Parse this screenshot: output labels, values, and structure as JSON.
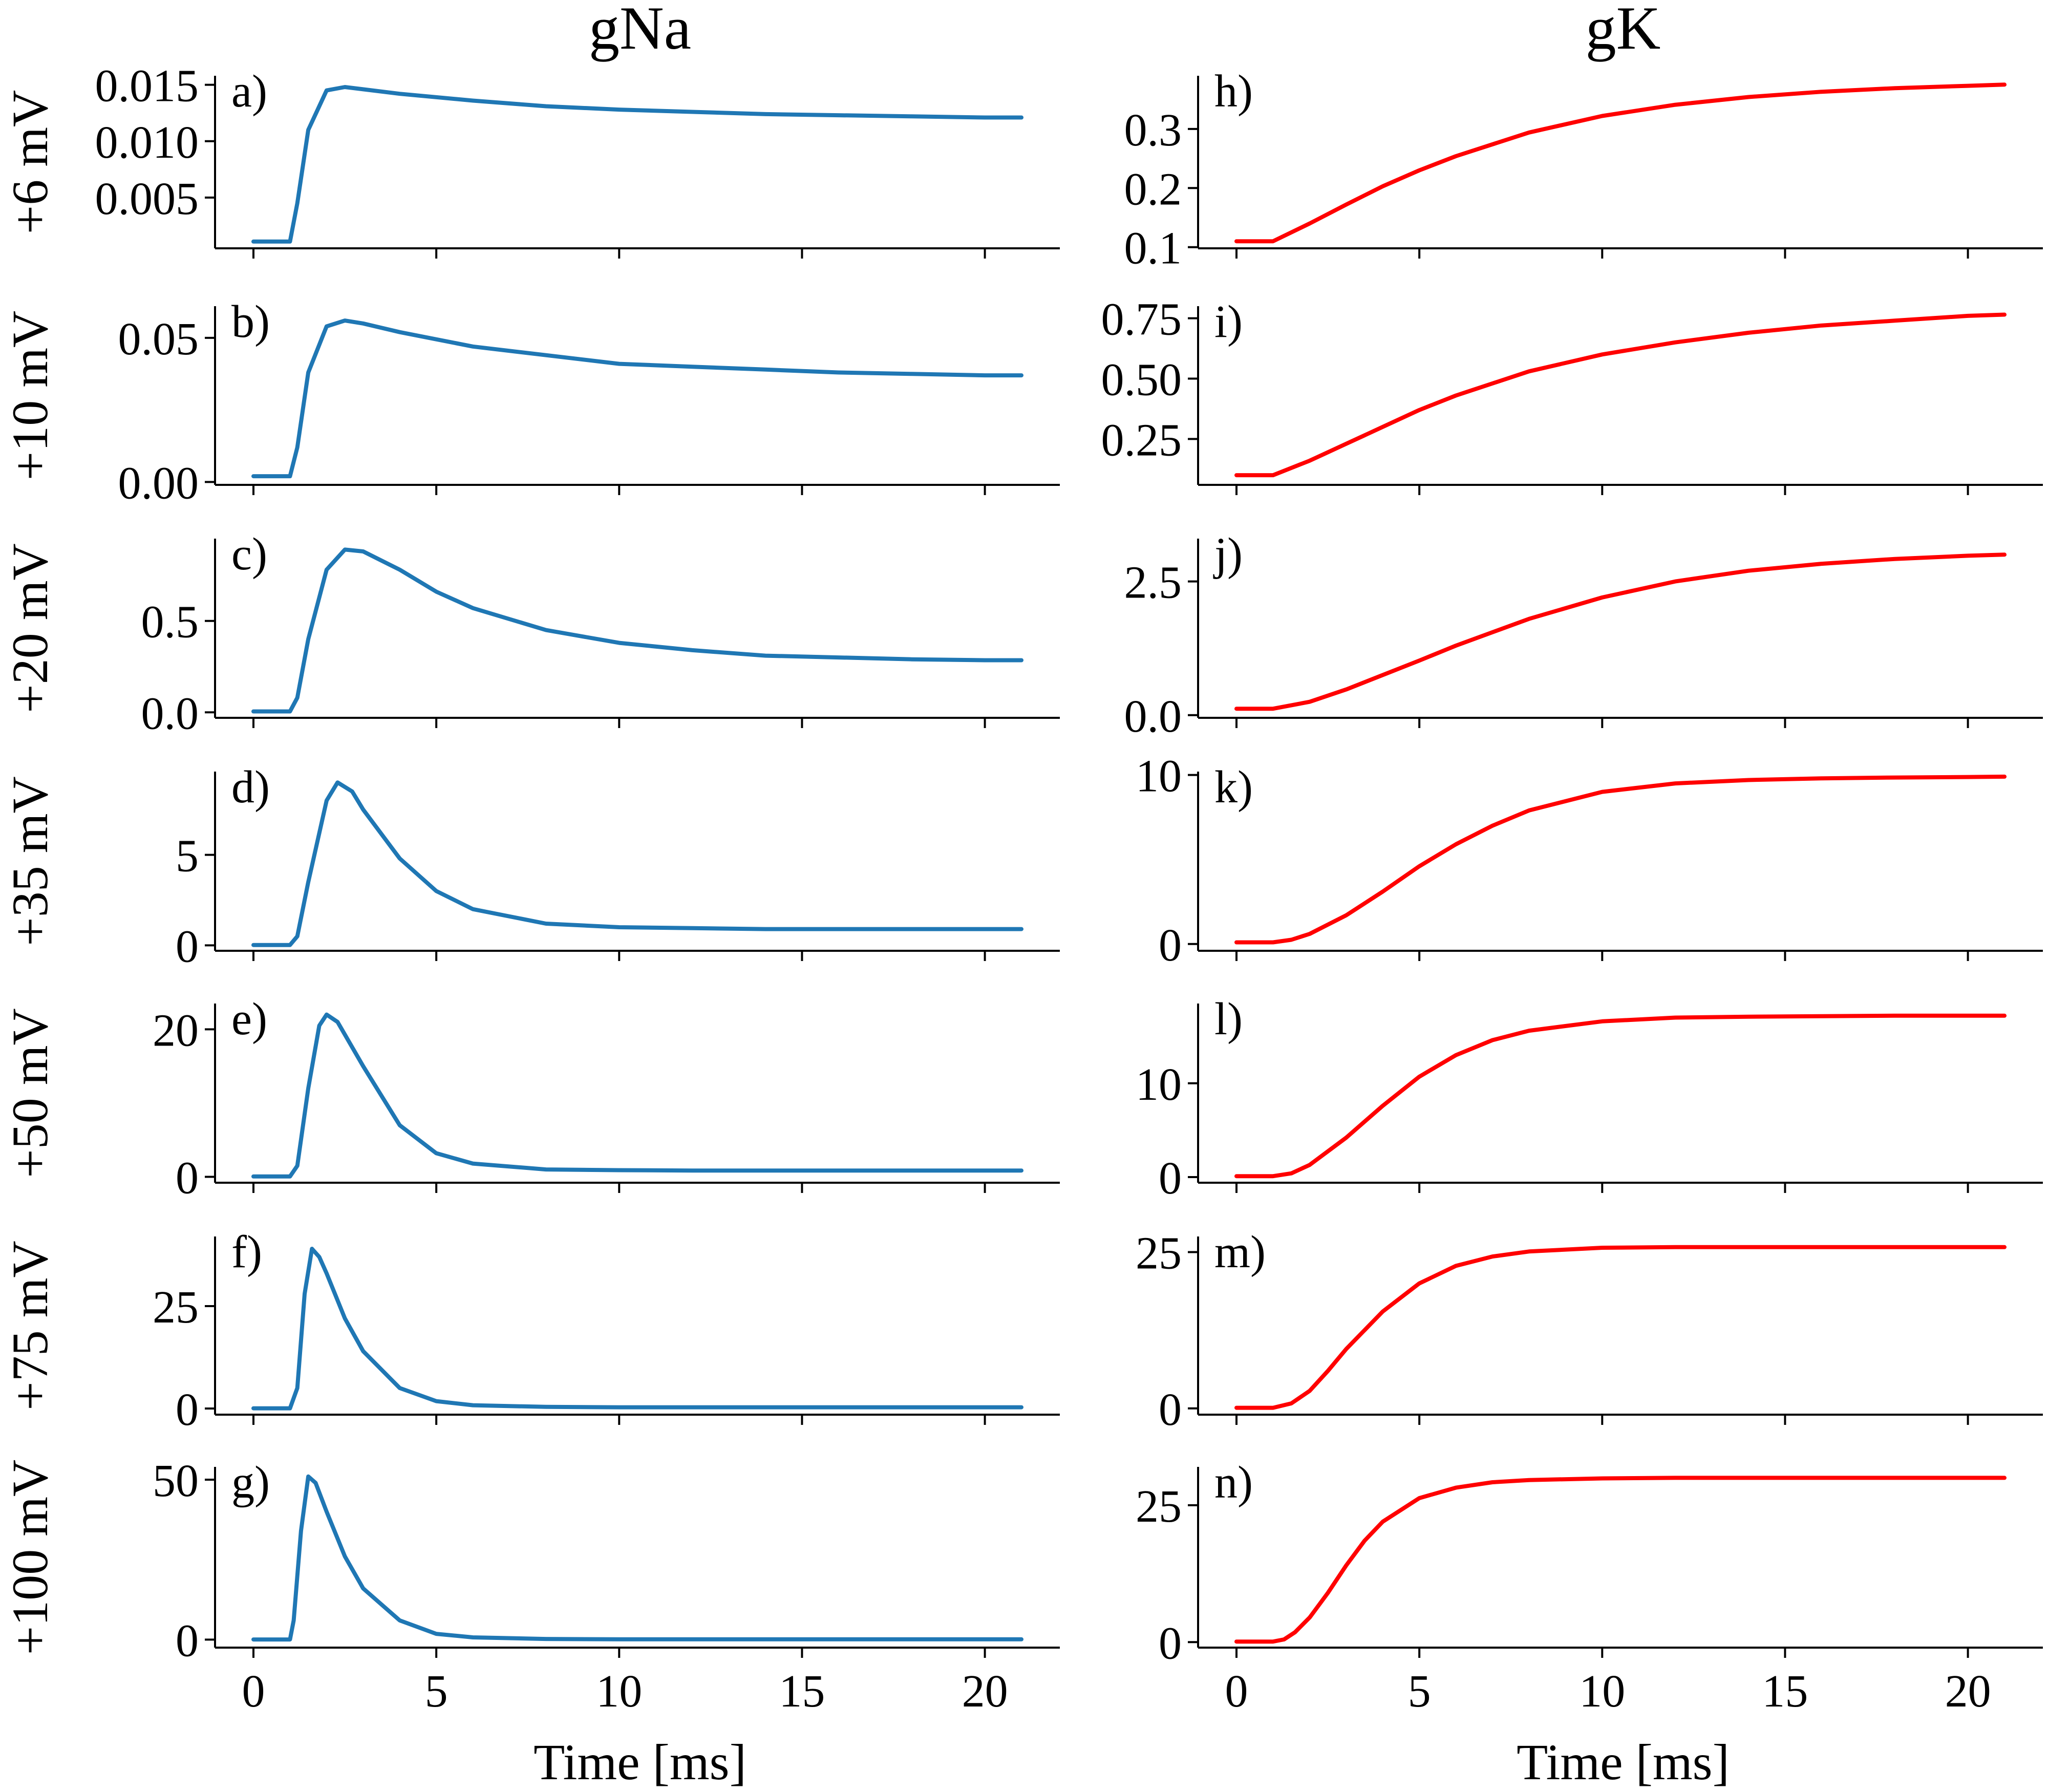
{
  "columns": [
    {
      "title": "gNa",
      "color": "#1f77b4"
    },
    {
      "title": "gK",
      "color": "#ff0000"
    }
  ],
  "xlabel": "Time [ms]",
  "xticks": [
    0,
    5,
    10,
    15,
    20
  ],
  "xlim": [
    -1.05,
    22.05
  ],
  "rows": [
    {
      "label": "+6 mV"
    },
    {
      "label": "+10 mV"
    },
    {
      "label": "+20 mV"
    },
    {
      "label": "+35 mV"
    },
    {
      "label": "+50 mV"
    },
    {
      "label": "+75 mV"
    },
    {
      "label": "+100 mV"
    }
  ],
  "chart_data": [
    {
      "type": "line",
      "panel": "a)",
      "series": [
        {
          "x": [
            0,
            0.5,
            1,
            1.2,
            1.5,
            2,
            2.5,
            3,
            4,
            6,
            8,
            10,
            12,
            14,
            16,
            18,
            20,
            21
          ],
          "y": [
            0.0011,
            0.0011,
            0.0011,
            0.0045,
            0.011,
            0.0145,
            0.0148,
            0.0146,
            0.0142,
            0.0136,
            0.0131,
            0.0128,
            0.0126,
            0.0124,
            0.0123,
            0.0122,
            0.0121,
            0.0121
          ]
        }
      ],
      "yticks": [
        0.005,
        0.01,
        0.015
      ],
      "ytick_labels": [
        "0.005",
        "0.010",
        "0.015"
      ],
      "ylim": [
        0.0005,
        0.0158
      ]
    },
    {
      "type": "line",
      "panel": "b)",
      "series": [
        {
          "x": [
            0,
            0.5,
            1,
            1.2,
            1.5,
            2,
            2.5,
            3,
            4,
            6,
            8,
            10,
            12,
            14,
            16,
            18,
            20,
            21
          ],
          "y": [
            0.002,
            0.002,
            0.002,
            0.012,
            0.038,
            0.054,
            0.056,
            0.055,
            0.052,
            0.047,
            0.044,
            0.041,
            0.04,
            0.039,
            0.038,
            0.0375,
            0.037,
            0.037
          ]
        }
      ],
      "yticks": [
        0.0,
        0.05
      ],
      "ytick_labels": [
        "0.00",
        "0.05"
      ],
      "ylim": [
        -0.001,
        0.061
      ]
    },
    {
      "type": "line",
      "panel": "c)",
      "series": [
        {
          "x": [
            0,
            0.5,
            1,
            1.2,
            1.5,
            2,
            2.5,
            3,
            4,
            5,
            6,
            8,
            10,
            12,
            14,
            16,
            18,
            20,
            21
          ],
          "y": [
            0.005,
            0.005,
            0.005,
            0.08,
            0.4,
            0.78,
            0.89,
            0.88,
            0.78,
            0.66,
            0.57,
            0.45,
            0.38,
            0.34,
            0.31,
            0.3,
            0.29,
            0.285,
            0.285
          ]
        }
      ],
      "yticks": [
        0.0,
        0.5
      ],
      "ytick_labels": [
        "0.0",
        "0.5"
      ],
      "ylim": [
        -0.03,
        0.95
      ]
    },
    {
      "type": "line",
      "panel": "d)",
      "series": [
        {
          "x": [
            0,
            0.5,
            1,
            1.2,
            1.5,
            2,
            2.3,
            2.7,
            3,
            4,
            5,
            6,
            8,
            10,
            12,
            14,
            16,
            18,
            20,
            21
          ],
          "y": [
            0.02,
            0.02,
            0.02,
            0.5,
            3.5,
            8.0,
            9.0,
            8.5,
            7.5,
            4.8,
            3.0,
            2.0,
            1.2,
            1.0,
            0.95,
            0.9,
            0.9,
            0.9,
            0.9,
            0.9
          ]
        }
      ],
      "yticks": [
        0,
        5
      ],
      "ytick_labels": [
        "0",
        "5"
      ],
      "ylim": [
        -0.3,
        9.6
      ]
    },
    {
      "type": "line",
      "panel": "e)",
      "series": [
        {
          "x": [
            0,
            0.5,
            1,
            1.2,
            1.5,
            1.8,
            2.0,
            2.3,
            3,
            4,
            5,
            6,
            8,
            10,
            12,
            14,
            16,
            18,
            20,
            21
          ],
          "y": [
            0.05,
            0.05,
            0.05,
            1.5,
            12,
            20.5,
            22,
            21,
            15,
            7,
            3.2,
            1.8,
            1.0,
            0.9,
            0.85,
            0.85,
            0.85,
            0.85,
            0.85,
            0.85
          ]
        }
      ],
      "yticks": [
        0,
        20
      ],
      "ytick_labels": [
        "0",
        "20"
      ],
      "ylim": [
        -0.8,
        23.5
      ]
    },
    {
      "type": "line",
      "panel": "f)",
      "series": [
        {
          "x": [
            0,
            0.5,
            1,
            1.2,
            1.4,
            1.6,
            1.8,
            2.0,
            2.5,
            3,
            4,
            5,
            6,
            8,
            10,
            12,
            14,
            16,
            18,
            20,
            21
          ],
          "y": [
            0.05,
            0.05,
            0.05,
            5,
            28,
            39,
            37,
            33,
            22,
            14,
            5,
            1.8,
            0.8,
            0.4,
            0.3,
            0.3,
            0.3,
            0.3,
            0.3,
            0.3,
            0.3
          ]
        }
      ],
      "yticks": [
        0,
        25
      ],
      "ytick_labels": [
        "0",
        "25"
      ],
      "ylim": [
        -1.5,
        42
      ]
    },
    {
      "type": "line",
      "panel": "g)",
      "series": [
        {
          "x": [
            0,
            0.5,
            1,
            1.1,
            1.3,
            1.5,
            1.7,
            2.0,
            2.5,
            3,
            4,
            5,
            6,
            8,
            10,
            12,
            14,
            16,
            18,
            20,
            21
          ],
          "y": [
            0.05,
            0.05,
            0.05,
            6,
            34,
            51,
            49,
            40,
            26,
            16,
            6,
            1.8,
            0.7,
            0.2,
            0.1,
            0.1,
            0.1,
            0.1,
            0.1,
            0.1,
            0.1
          ]
        }
      ],
      "yticks": [
        0,
        50
      ],
      "ytick_labels": [
        "0",
        "50"
      ],
      "ylim": [
        -2.5,
        54
      ]
    },
    {
      "type": "line",
      "panel": "h)",
      "series": [
        {
          "x": [
            0,
            0.5,
            1,
            2,
            3,
            4,
            5,
            6,
            8,
            10,
            12,
            14,
            16,
            18,
            20,
            21
          ],
          "y": [
            0.11,
            0.11,
            0.11,
            0.14,
            0.172,
            0.203,
            0.23,
            0.254,
            0.294,
            0.322,
            0.341,
            0.354,
            0.363,
            0.369,
            0.373,
            0.375
          ]
        }
      ],
      "yticks": [
        0.1,
        0.2,
        0.3
      ],
      "ytick_labels": [
        "0.1",
        "0.2",
        "0.3"
      ],
      "ylim": [
        0.098,
        0.39
      ]
    },
    {
      "type": "line",
      "panel": "i)",
      "series": [
        {
          "x": [
            0,
            0.5,
            1,
            2,
            3,
            4,
            5,
            6,
            8,
            10,
            12,
            14,
            16,
            18,
            20,
            21
          ],
          "y": [
            0.1,
            0.1,
            0.1,
            0.16,
            0.23,
            0.3,
            0.37,
            0.43,
            0.53,
            0.6,
            0.65,
            0.69,
            0.72,
            0.74,
            0.76,
            0.765
          ]
        }
      ],
      "yticks": [
        0.25,
        0.5,
        0.75
      ],
      "ytick_labels": [
        "0.25",
        "0.50",
        "0.75"
      ],
      "ylim": [
        0.06,
        0.8
      ]
    },
    {
      "type": "line",
      "panel": "j)",
      "series": [
        {
          "x": [
            0,
            0.5,
            1,
            2,
            3,
            4,
            5,
            6,
            8,
            10,
            12,
            14,
            16,
            18,
            20,
            21
          ],
          "y": [
            0.12,
            0.12,
            0.12,
            0.25,
            0.48,
            0.75,
            1.02,
            1.3,
            1.8,
            2.2,
            2.5,
            2.7,
            2.83,
            2.92,
            2.98,
            3.0
          ]
        }
      ],
      "yticks": [
        0.0,
        2.5
      ],
      "ytick_labels": [
        "0.0",
        "2.5"
      ],
      "ylim": [
        -0.05,
        3.3
      ]
    },
    {
      "type": "line",
      "panel": "k)",
      "series": [
        {
          "x": [
            0,
            0.5,
            1,
            1.5,
            2,
            3,
            4,
            5,
            6,
            7,
            8,
            10,
            12,
            14,
            16,
            18,
            20,
            21
          ],
          "y": [
            0.1,
            0.1,
            0.1,
            0.25,
            0.6,
            1.7,
            3.1,
            4.6,
            5.9,
            7.0,
            7.9,
            9.0,
            9.5,
            9.7,
            9.8,
            9.85,
            9.88,
            9.9
          ]
        }
      ],
      "yticks": [
        0,
        10
      ],
      "ytick_labels": [
        "0",
        "10"
      ],
      "ylim": [
        -0.4,
        10.2
      ]
    },
    {
      "type": "line",
      "panel": "l)",
      "series": [
        {
          "x": [
            0,
            0.5,
            1,
            1.5,
            2,
            3,
            4,
            5,
            6,
            7,
            8,
            10,
            12,
            14,
            16,
            18,
            20,
            21
          ],
          "y": [
            0.1,
            0.1,
            0.1,
            0.4,
            1.3,
            4.2,
            7.6,
            10.7,
            13.0,
            14.6,
            15.6,
            16.6,
            17.0,
            17.1,
            17.15,
            17.2,
            17.2,
            17.2
          ]
        }
      ],
      "yticks": [
        0,
        10
      ],
      "ytick_labels": [
        "0",
        "10"
      ],
      "ylim": [
        -0.6,
        18.5
      ]
    },
    {
      "type": "line",
      "panel": "m)",
      "series": [
        {
          "x": [
            0,
            0.5,
            1,
            1.5,
            2,
            2.5,
            3,
            4,
            5,
            6,
            7,
            8,
            10,
            12,
            14,
            16,
            18,
            20,
            21
          ],
          "y": [
            0.1,
            0.1,
            0.1,
            0.8,
            2.8,
            6.0,
            9.5,
            15.5,
            20.0,
            22.8,
            24.3,
            25.1,
            25.7,
            25.8,
            25.8,
            25.8,
            25.8,
            25.8,
            25.8
          ]
        }
      ],
      "yticks": [
        0,
        25
      ],
      "ytick_labels": [
        "0",
        "25"
      ],
      "ylim": [
        -1.0,
        27.5
      ]
    },
    {
      "type": "line",
      "panel": "n)",
      "series": [
        {
          "x": [
            0,
            0.5,
            1,
            1.3,
            1.6,
            2,
            2.5,
            3,
            3.5,
            4,
            5,
            6,
            7,
            8,
            10,
            12,
            14,
            16,
            18,
            20,
            21
          ],
          "y": [
            0.1,
            0.1,
            0.1,
            0.5,
            1.8,
            4.5,
            9.0,
            14.0,
            18.5,
            22.0,
            26.3,
            28.2,
            29.2,
            29.6,
            29.9,
            30.0,
            30.0,
            30.0,
            30.0,
            30.0,
            30.0
          ]
        }
      ],
      "yticks": [
        0,
        25
      ],
      "ytick_labels": [
        "0",
        "25"
      ],
      "ylim": [
        -1.0,
        32.0
      ]
    }
  ]
}
